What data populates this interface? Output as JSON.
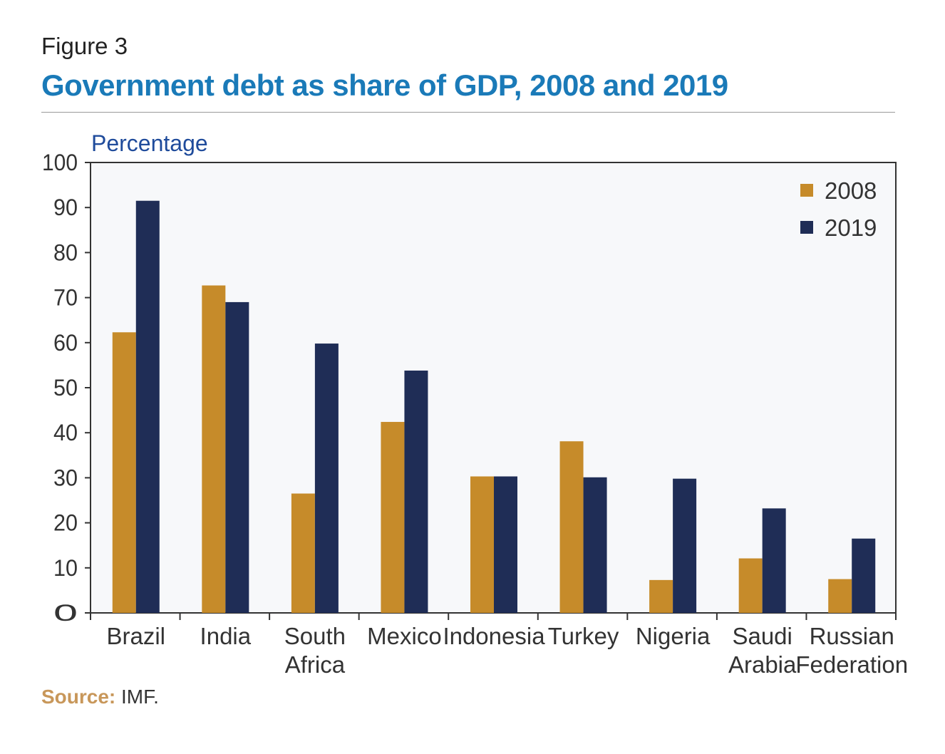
{
  "figure_label": "Figure 3",
  "title": "Government debt as share of GDP, 2008 and 2019",
  "source_label": "Source:",
  "source_text": " IMF.",
  "colors": {
    "s2008": "#c68b2a",
    "s2019": "#1f2d56",
    "plot_bg": "#f7f8fa",
    "title": "#1a7ab8",
    "ylabel": "#1f4b9b"
  },
  "chart_data": {
    "type": "bar",
    "ylabel": "Percentage",
    "ylim": [
      0,
      100
    ],
    "yticks": [
      0,
      10,
      20,
      30,
      40,
      50,
      60,
      70,
      80,
      90,
      100
    ],
    "grid": false,
    "legend_position": "top-right",
    "categories": [
      [
        "Brazil"
      ],
      [
        "India"
      ],
      [
        "South",
        "Africa"
      ],
      [
        "Mexico"
      ],
      [
        "Indonesia"
      ],
      [
        "Turkey"
      ],
      [
        "Nigeria"
      ],
      [
        "Saudi",
        "Arabia"
      ],
      [
        "Russian",
        "Federation"
      ]
    ],
    "series": [
      {
        "name": "2008",
        "values": [
          62.3,
          72.7,
          26.5,
          42.4,
          30.3,
          38.1,
          7.3,
          12.1,
          7.5
        ]
      },
      {
        "name": "2019",
        "values": [
          91.5,
          69.0,
          59.8,
          53.8,
          30.3,
          30.1,
          29.8,
          23.2,
          16.5
        ]
      }
    ]
  }
}
